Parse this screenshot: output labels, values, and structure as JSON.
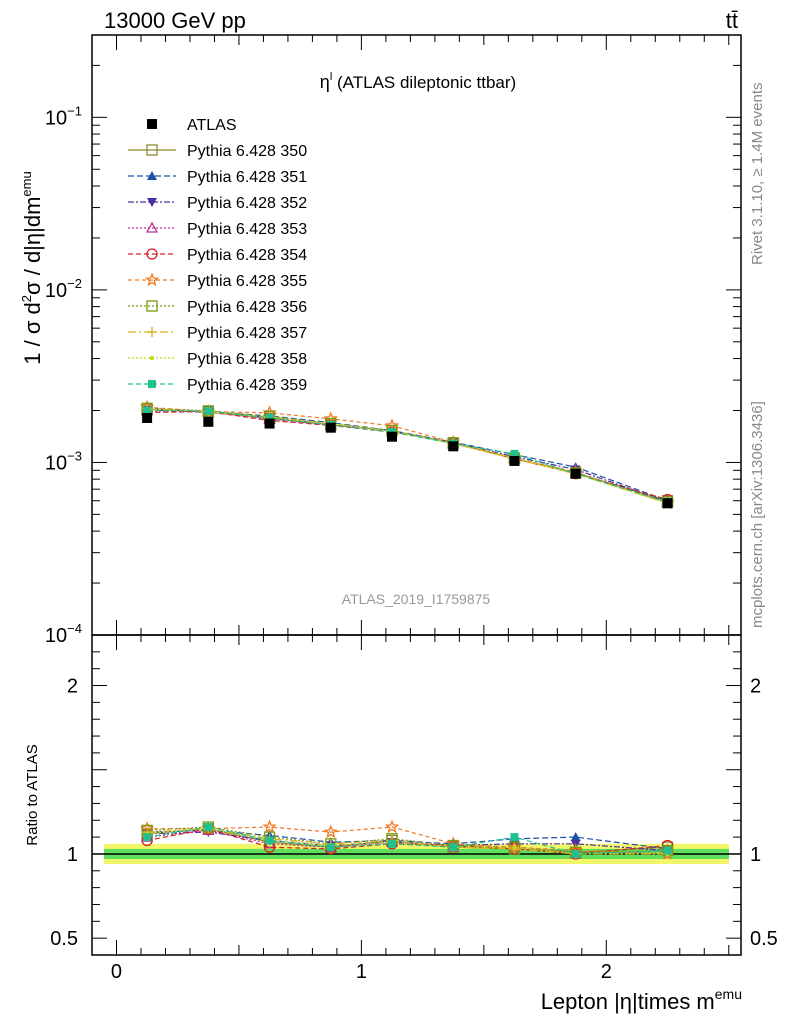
{
  "header": {
    "left_label": "13000 GeV pp",
    "right_label": "tt̄"
  },
  "side_labels": {
    "rivet": "Rivet 3.1.10, ≥ 1.4M events",
    "mcplots": "mcplots.cern.ch [arXiv:1306.3436]"
  },
  "chart_data": [
    {
      "type": "scatter",
      "panel": "main",
      "title_main": "η",
      "title_sup": "l",
      "title_rest": " (ATLAS dileptonic ttbar)",
      "watermark": "ATLAS_2019_I1759875",
      "ylabel": "1 / σ d²σ / d|η|dm^emu",
      "ylabel_parts": {
        "a": "1 / σ  d",
        "b": "2",
        "c": "σ / d|η|dm",
        "d": "emu"
      },
      "yscale": "log",
      "ylim": [
        0.0001,
        0.3
      ],
      "xlim": [
        -0.1,
        2.55
      ],
      "yticks": [
        {
          "base": "10",
          "exp": "−1",
          "value": 0.1
        },
        {
          "base": "10",
          "exp": "−2",
          "value": 0.01
        },
        {
          "base": "10",
          "exp": "−3",
          "value": 0.001
        },
        {
          "base": "10",
          "exp": "−4",
          "value": 0.0001
        }
      ],
      "legend_position": "top-left",
      "x": [
        0.125,
        0.375,
        0.625,
        0.875,
        1.125,
        1.375,
        1.625,
        1.875,
        2.25
      ],
      "data": {
        "name": "ATLAS",
        "color": "#000000",
        "values": [
          0.00181,
          0.00172,
          0.00168,
          0.00159,
          0.00141,
          0.00124,
          0.00102,
          0.00086,
          0.00058
        ]
      },
      "series": [
        {
          "name": "Pythia 6.428 350",
          "color": "#8b8b2c",
          "marker": "square-open",
          "dash": "none",
          "values": [
            0.00203,
            0.00197,
            0.0018,
            0.00165,
            0.00153,
            0.00129,
            0.00105,
            0.00087,
            0.0006
          ]
        },
        {
          "name": "Pythia 6.428 351",
          "color": "#1f4fa8",
          "marker": "triangle-up",
          "dash": "6,3",
          "values": [
            0.00205,
            0.00196,
            0.00186,
            0.0017,
            0.00153,
            0.00131,
            0.00111,
            0.00094,
            0.0006
          ]
        },
        {
          "name": "Pythia 6.428 352",
          "color": "#4b2ea0",
          "marker": "triangle-down",
          "dash": "6,2,2,2",
          "values": [
            0.00202,
            0.00195,
            0.00182,
            0.00166,
            0.00151,
            0.0013,
            0.00108,
            0.00091,
            0.00059
          ]
        },
        {
          "name": "Pythia 6.428 353",
          "color": "#c0309a",
          "marker": "triangle-open",
          "dash": "2,2",
          "values": [
            0.00199,
            0.00196,
            0.00178,
            0.00165,
            0.00151,
            0.00129,
            0.00106,
            0.00086,
            0.00059
          ]
        },
        {
          "name": "Pythia 6.428 354",
          "color": "#d42020",
          "marker": "circle-open",
          "dash": "5,3",
          "values": [
            0.00195,
            0.00197,
            0.00175,
            0.00164,
            0.0015,
            0.0013,
            0.00105,
            0.00086,
            0.00061
          ]
        },
        {
          "name": "Pythia 6.428 355",
          "color": "#f07820",
          "marker": "star-open",
          "dash": "4,3",
          "values": [
            0.00209,
            0.00197,
            0.00194,
            0.00179,
            0.00163,
            0.00131,
            0.00106,
            0.00088,
            0.00058
          ]
        },
        {
          "name": "Pythia 6.428 356",
          "color": "#7a9a10",
          "marker": "square-open",
          "dash": "2,2",
          "values": [
            0.00206,
            0.00199,
            0.00185,
            0.00168,
            0.00153,
            0.0013,
            0.00106,
            0.00087,
            0.00059
          ]
        },
        {
          "name": "Pythia 6.428 357",
          "color": "#d8b820",
          "marker": "cross",
          "dash": "8,3,2,3",
          "values": [
            0.00204,
            0.00197,
            0.00183,
            0.00168,
            0.00152,
            0.00129,
            0.00105,
            0.00086,
            0.00058
          ]
        },
        {
          "name": "Pythia 6.428 358",
          "color": "#c8d820",
          "marker": "dot",
          "dash": "2,2",
          "values": [
            0.00203,
            0.00197,
            0.00181,
            0.00167,
            0.00151,
            0.00129,
            0.00106,
            0.00086,
            0.00058
          ]
        },
        {
          "name": "Pythia 6.428 359",
          "color": "#20c090",
          "marker": "square-filled",
          "dash": "5,3",
          "values": [
            0.002,
            0.00199,
            0.00181,
            0.00165,
            0.0015,
            0.00129,
            0.00112,
            0.00086,
            0.00059
          ]
        }
      ]
    },
    {
      "type": "scatter",
      "panel": "ratio",
      "ylabel": "Ratio to ATLAS",
      "xlabel_main": "Lepton |η|times m",
      "xlabel_sup": "emu",
      "ylim": [
        0.4,
        2.3
      ],
      "xlim": [
        -0.1,
        2.55
      ],
      "yticks": [
        {
          "label": "2",
          "value": 2.0
        },
        {
          "label": "1",
          "value": 1.0
        },
        {
          "label": "0.5",
          "value": 0.5
        }
      ],
      "xticks": [
        {
          "label": "0",
          "value": 0
        },
        {
          "label": "1",
          "value": 1
        },
        {
          "label": "2",
          "value": 2
        }
      ],
      "x": [
        0.125,
        0.375,
        0.625,
        0.875,
        1.125,
        1.375,
        1.625,
        1.875,
        2.25
      ],
      "band": {
        "inner": 0.03,
        "outer": 0.06,
        "inner_color": "#5ee05e",
        "outer_color": "#f2f76a"
      },
      "series": [
        {
          "name": "Pythia 6.428 350",
          "values": [
            1.12,
            1.15,
            1.07,
            1.04,
            1.08,
            1.04,
            1.03,
            1.01,
            1.04
          ]
        },
        {
          "name": "Pythia 6.428 351",
          "values": [
            1.13,
            1.14,
            1.11,
            1.07,
            1.08,
            1.06,
            1.09,
            1.1,
            1.03
          ]
        },
        {
          "name": "Pythia 6.428 352",
          "values": [
            1.12,
            1.13,
            1.08,
            1.05,
            1.07,
            1.05,
            1.06,
            1.06,
            1.02
          ]
        },
        {
          "name": "Pythia 6.428 353",
          "values": [
            1.1,
            1.14,
            1.06,
            1.04,
            1.07,
            1.04,
            1.04,
            1.0,
            1.02
          ]
        },
        {
          "name": "Pythia 6.428 354",
          "values": [
            1.08,
            1.15,
            1.04,
            1.03,
            1.06,
            1.05,
            1.03,
            1.0,
            1.05
          ]
        },
        {
          "name": "Pythia 6.428 355",
          "values": [
            1.15,
            1.15,
            1.16,
            1.13,
            1.16,
            1.06,
            1.04,
            1.02,
            1.0
          ]
        },
        {
          "name": "Pythia 6.428 356",
          "values": [
            1.14,
            1.16,
            1.1,
            1.06,
            1.09,
            1.05,
            1.04,
            1.01,
            1.02
          ]
        },
        {
          "name": "Pythia 6.428 357",
          "values": [
            1.13,
            1.15,
            1.09,
            1.06,
            1.08,
            1.04,
            1.03,
            1.0,
            1.0
          ]
        },
        {
          "name": "Pythia 6.428 358",
          "values": [
            1.12,
            1.15,
            1.08,
            1.05,
            1.07,
            1.04,
            1.04,
            1.0,
            1.0
          ]
        },
        {
          "name": "Pythia 6.428 359",
          "values": [
            1.1,
            1.16,
            1.08,
            1.04,
            1.06,
            1.04,
            1.1,
            1.0,
            1.02
          ]
        }
      ]
    }
  ]
}
